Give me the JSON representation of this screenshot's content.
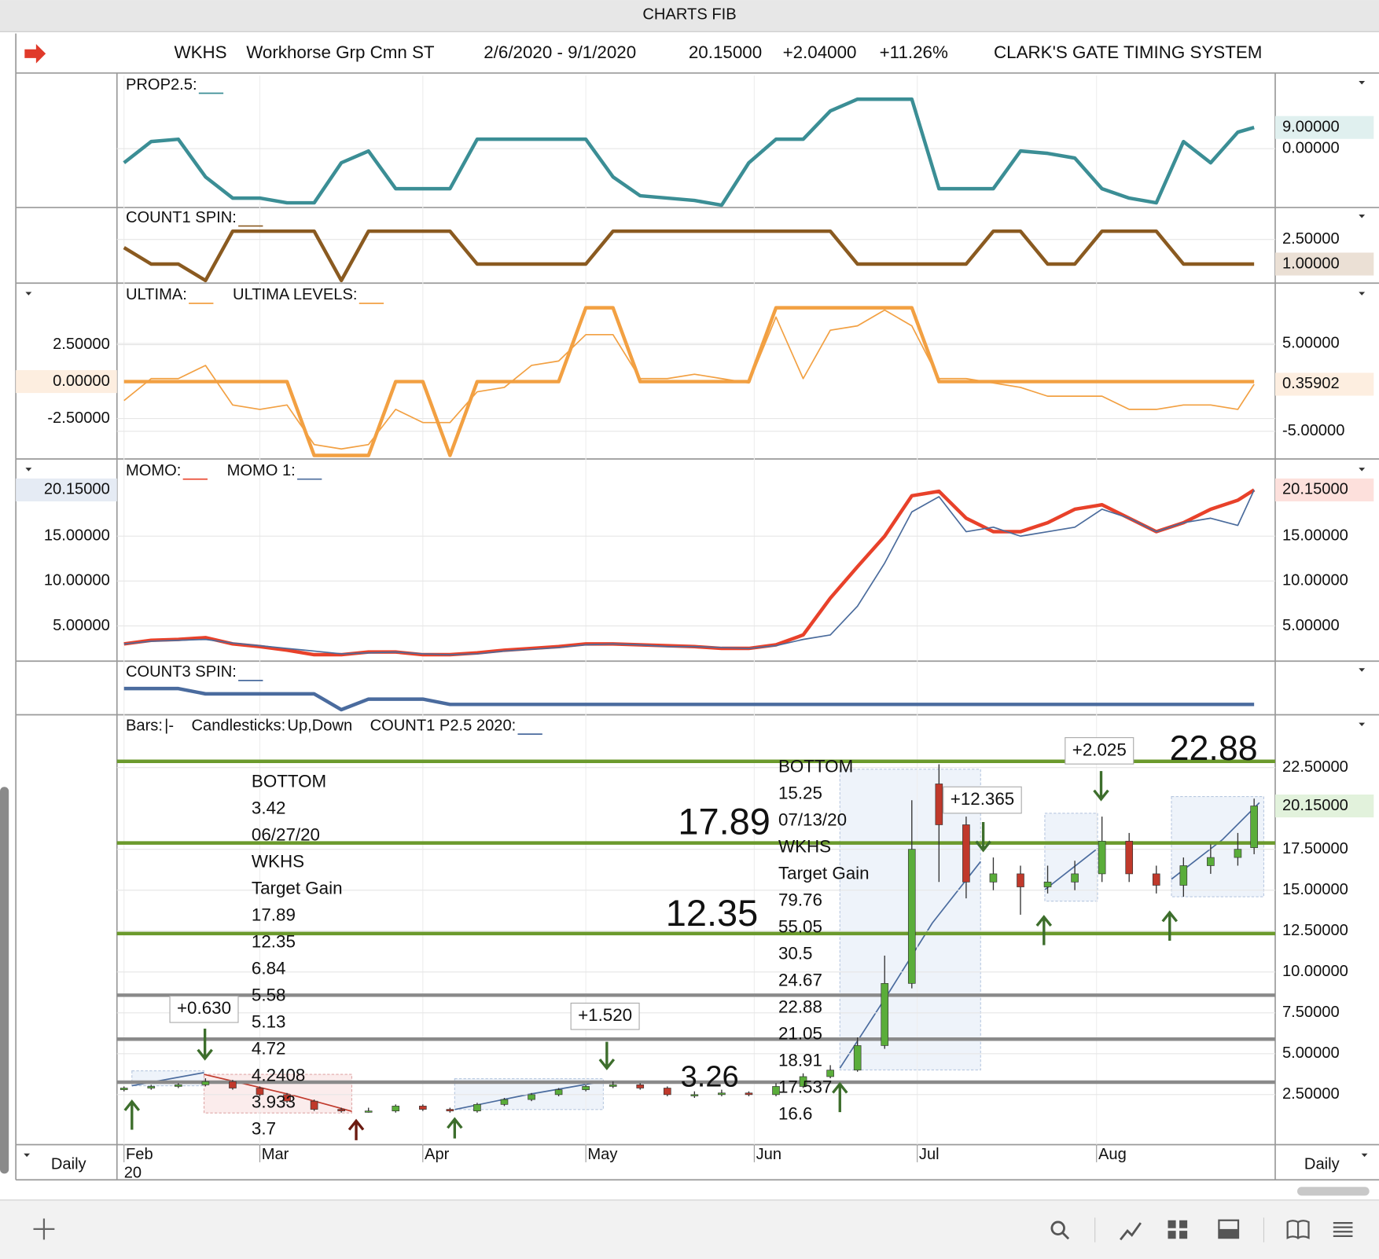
{
  "window": {
    "title": "CHARTS FIB"
  },
  "header": {
    "symbol": "WKHS",
    "name": "Workhorse Grp Cmn ST",
    "range": "2/6/2020 - 9/1/2020",
    "last": "20.15000",
    "change": "+2.04000",
    "change_pct": "+11.26%",
    "system": "CLARK'S GATE TIMING SYSTEM"
  },
  "x_axis": {
    "xlim": [
      37,
      245
    ],
    "x": [
      37,
      42,
      47,
      52,
      57,
      62,
      67,
      72,
      77,
      82,
      87,
      92,
      97,
      102,
      107,
      112,
      117,
      122,
      127,
      132,
      137,
      142,
      147,
      152,
      157,
      162,
      167,
      172,
      177,
      182,
      187,
      192,
      197,
      202,
      207,
      212,
      217,
      222,
      227,
      232,
      237,
      242,
      245
    ],
    "xticks": [
      {
        "value": 37,
        "label": "Feb"
      },
      {
        "value": 62,
        "label": "Mar"
      },
      {
        "value": 92,
        "label": "Apr"
      },
      {
        "value": 122,
        "label": "May"
      },
      {
        "value": 153,
        "label": "Jun"
      },
      {
        "value": 183,
        "label": "Jul"
      },
      {
        "value": 216,
        "label": "Aug"
      }
    ],
    "year_label": "20"
  },
  "chart_data": [
    {
      "type": "line",
      "ylim": [
        -25,
        31
      ],
      "tick_side": "right",
      "yticks": [
        {
          "value": 0,
          "label": "0.00000"
        }
      ],
      "series": [
        {
          "name": "PROP2.5:",
          "color": "#3b8e95",
          "weight": "bold",
          "label_side": "right",
          "label_color": "#e0f0ef",
          "last_label": "9.00000",
          "values": [
            -6,
            3,
            4,
            -12,
            -21,
            -21,
            -23,
            -23,
            -6,
            -1,
            -17,
            -17,
            -17,
            4,
            4,
            4,
            4,
            4,
            -12,
            -20,
            -21,
            -22,
            -24,
            -6,
            4,
            4,
            16,
            21,
            21,
            21,
            -17,
            -17,
            -17,
            -1,
            -2,
            -4,
            -17,
            -21,
            -23,
            3,
            -6,
            7,
            9
          ]
        }
      ]
    },
    {
      "type": "line",
      "ylim": [
        -0.16,
        4.44
      ],
      "tick_side": "right",
      "yticks": [
        {
          "value": 2.5,
          "label": "2.50000"
        }
      ],
      "series": [
        {
          "name": "COUNT1 SPIN:",
          "color": "#8a5a20",
          "weight": "bold",
          "label_side": "right",
          "label_color": "#ebe0d5",
          "last_label": "1.00000",
          "values": [
            2,
            1,
            1,
            0,
            3,
            3,
            3,
            3,
            0,
            3,
            3,
            3,
            3,
            1,
            1,
            1,
            1,
            1,
            3,
            3,
            3,
            3,
            3,
            3,
            3,
            3,
            3,
            1,
            1,
            1,
            1,
            1,
            3,
            3,
            1,
            1,
            3,
            3,
            3,
            1,
            1,
            1,
            1
          ]
        }
      ]
    },
    {
      "type": "line",
      "ylim": [
        -5.24,
        6.67
      ],
      "tick_side": "left",
      "yticks": [
        {
          "value": -2.5,
          "label": "-2.50000"
        },
        {
          "value": 2.5,
          "label": "2.50000"
        }
      ],
      "y2lim": [
        -8.14,
        11.86
      ],
      "y2ticks": [
        {
          "value": -5,
          "label": "-5.00000"
        },
        {
          "value": 5,
          "label": "5.00000"
        }
      ],
      "series": [
        {
          "name": "ULTIMA:",
          "color": "#f2a042",
          "weight": "thin",
          "axis": "y2",
          "label_side": "right",
          "label_color": "#fdeee0",
          "last_label": "0.35902",
          "values": [
            -1.5,
            1,
            1,
            2.5,
            -2,
            -2.5,
            -2,
            -6.5,
            -7,
            -6.5,
            -2.5,
            -4,
            -4,
            -0.5,
            0,
            2.5,
            3,
            6,
            6,
            1,
            1,
            1.5,
            1,
            0.5,
            8,
            1,
            6.5,
            7,
            8.8,
            7,
            1,
            1,
            0.5,
            0,
            -1,
            -1,
            -1,
            -2.5,
            -2.5,
            -2,
            -2,
            -2.5,
            0.35902
          ]
        },
        {
          "name": "ULTIMA LEVELS:",
          "color": "#f2a042",
          "weight": "bold",
          "label_side": "left",
          "label_color": "#fdeee0",
          "last_label": "0.00000",
          "values": [
            0,
            0,
            0,
            0,
            0,
            0,
            0,
            -5,
            -5,
            -5,
            0,
            0,
            -5,
            0,
            0,
            0,
            0,
            5,
            5,
            0,
            0,
            0,
            0,
            0,
            5,
            5,
            5,
            5,
            5,
            5,
            0,
            0,
            0,
            0,
            0,
            0,
            0,
            0,
            0,
            0,
            0,
            0,
            0
          ]
        }
      ]
    },
    {
      "type": "line",
      "ylim": [
        1.08,
        23.6
      ],
      "tick_side": "both",
      "yticks": [
        {
          "value": 5,
          "label": "5.00000"
        },
        {
          "value": 10,
          "label": "10.00000"
        },
        {
          "value": 15,
          "label": "15.00000"
        }
      ],
      "series": [
        {
          "name": "MOMO:",
          "color": "#e8412a",
          "weight": "bold",
          "label_side": "right",
          "label_color": "#fde0dc",
          "last_label": "20.15000",
          "values": [
            3,
            3.4,
            3.5,
            3.7,
            3,
            2.7,
            2.3,
            1.8,
            1.8,
            2.1,
            2.1,
            1.8,
            1.8,
            2,
            2.3,
            2.5,
            2.7,
            3,
            3,
            2.9,
            2.8,
            2.7,
            2.5,
            2.5,
            2.9,
            4,
            8.1,
            11.6,
            15,
            19.5,
            20,
            17,
            15.5,
            15.5,
            16.5,
            18,
            18.5,
            17,
            15.5,
            16.5,
            18,
            19,
            20.15
          ]
        },
        {
          "name": "MOMO 1:",
          "color": "#4a6b9c",
          "weight": "thin",
          "label_side": "left",
          "label_color": "#e5ebf4",
          "last_label": "20.15000",
          "values": [
            3,
            3.3,
            3.4,
            3.5,
            3.1,
            2.8,
            2.5,
            2.2,
            1.9,
            2,
            2.1,
            1.9,
            1.8,
            1.9,
            2.2,
            2.4,
            2.6,
            2.9,
            3,
            2.9,
            2.7,
            2.7,
            2.6,
            2.5,
            2.8,
            3.5,
            4,
            7.2,
            12,
            17.7,
            19.4,
            15.5,
            16,
            15,
            15.5,
            16,
            18,
            17,
            15.5,
            16.5,
            17,
            16.2,
            20.15
          ]
        }
      ]
    },
    {
      "type": "line",
      "ylim": [
        -0.8,
        9.2
      ],
      "tick_side": "none",
      "yticks": [],
      "series": [
        {
          "name": "COUNT3 SPIN:",
          "color": "#4a6b9e",
          "weight": "bold",
          "values": [
            4,
            4,
            4,
            3,
            3,
            3,
            3,
            3,
            0,
            2,
            2,
            2,
            1,
            1,
            1,
            1,
            1,
            1,
            1,
            1,
            1,
            1,
            1,
            1,
            1,
            1,
            1,
            1,
            1,
            1,
            1,
            1,
            1,
            1,
            1,
            1,
            1,
            1,
            1,
            1,
            1,
            1,
            1
          ]
        }
      ]
    },
    {
      "type": "candlestick",
      "ylim": [
        -0.56,
        25.78
      ],
      "tick_side": "right",
      "yticks": [
        {
          "value": 2.5,
          "label": "2.50000"
        },
        {
          "value": 5,
          "label": "5.00000"
        },
        {
          "value": 7.5,
          "label": "7.50000"
        },
        {
          "value": 10,
          "label": "10.00000"
        },
        {
          "value": 12.5,
          "label": "12.50000"
        },
        {
          "value": 15,
          "label": "15.00000"
        },
        {
          "value": 17.5,
          "label": "17.50000"
        },
        {
          "value": 22.5,
          "label": "22.50000"
        }
      ],
      "legend": {
        "bars": "Bars:",
        "bars_symbol": "|-",
        "candles": "Candlesticks:",
        "up": "Up",
        "separator": ",",
        "down": "Down",
        "overlay": "COUNT1 P2.5 2020:"
      },
      "up_color": "#5aad3a",
      "down_color": "#c0392b",
      "overlay_color": "#4a6b9e",
      "label_color": "#e2f2dc",
      "last_label": "20.15000",
      "open": [
        2.8,
        2.9,
        3.0,
        3.1,
        3.3,
        2.9,
        2.5,
        2.1,
        1.6,
        1.5,
        1.5,
        1.8,
        1.6,
        1.5,
        1.9,
        2.2,
        2.5,
        2.8,
        3.0,
        3.1,
        2.9,
        2.5,
        2.5,
        2.6,
        2.5,
        3.0,
        3.6,
        4.0,
        5.5,
        9.3,
        21.5,
        19.0,
        15.5,
        16.0,
        15.2,
        15.5,
        16.0,
        18.0,
        16.0,
        15.3,
        16.5,
        17.0,
        17.6
      ],
      "high": [
        3.0,
        3.1,
        3.2,
        3.5,
        3.4,
        3.0,
        2.6,
        2.2,
        1.7,
        1.7,
        1.9,
        1.9,
        1.7,
        2.0,
        2.3,
        2.6,
        2.9,
        3.1,
        3.3,
        3.2,
        3.0,
        2.7,
        2.8,
        2.7,
        3.2,
        3.8,
        4.3,
        6.0,
        11.0,
        20.5,
        22.7,
        19.5,
        17.0,
        16.5,
        16.5,
        16.8,
        19.5,
        18.5,
        16.5,
        17.0,
        17.8,
        18.5,
        20.6
      ],
      "low": [
        2.7,
        2.8,
        2.9,
        3.0,
        2.8,
        2.4,
        2.0,
        1.5,
        1.4,
        1.4,
        1.4,
        1.5,
        1.4,
        1.4,
        1.8,
        2.1,
        2.4,
        2.7,
        2.9,
        2.8,
        2.4,
        2.3,
        2.4,
        2.4,
        2.4,
        2.9,
        3.5,
        3.9,
        5.3,
        9.0,
        15.5,
        14.5,
        15.0,
        13.5,
        14.8,
        15.0,
        15.5,
        15.5,
        14.8,
        14.6,
        16.0,
        16.5,
        17.2
      ],
      "close": [
        2.9,
        3.0,
        3.1,
        3.3,
        2.9,
        2.5,
        2.1,
        1.6,
        1.5,
        1.5,
        1.8,
        1.6,
        1.5,
        1.9,
        2.2,
        2.5,
        2.8,
        3.0,
        3.1,
        2.9,
        2.5,
        2.5,
        2.6,
        2.5,
        3.0,
        3.6,
        4.0,
        5.5,
        9.3,
        17.5,
        19.0,
        15.5,
        16.0,
        15.2,
        15.5,
        16.0,
        18.0,
        16.0,
        15.3,
        16.5,
        17.0,
        17.5,
        20.15
      ],
      "levels": [
        {
          "value": 22.88,
          "color": "#6b9a2c",
          "label": "22.88",
          "label_color": "#5f9a2a"
        },
        {
          "value": 17.89,
          "color": "#6b9a2c",
          "label": "17.89",
          "label_color": "#5f9a2a"
        },
        {
          "value": 12.35,
          "color": "#6b9a2c",
          "label": "12.35",
          "label_color": "#5f9a2a"
        },
        {
          "value": 8.58,
          "color": "#8a8a8a"
        },
        {
          "value": 5.89,
          "color": "#8a8a8a"
        },
        {
          "value": 3.26,
          "color": "#8a8a8a",
          "label": "3.26",
          "label_color": "#111111"
        }
      ],
      "notes": [
        {
          "color": "#5f9a2a",
          "lines": [
            "BOTTOM",
            "3.42",
            "06/27/20",
            "WKHS",
            "Target Gain",
            "17.89",
            "12.35",
            "6.84",
            "5.58",
            "5.13",
            "4.72",
            "4.2408",
            "3.933",
            "3.7"
          ]
        },
        {
          "color": "#5f9a2a",
          "lines": [
            "BOTTOM",
            "15.25",
            "07/13/20",
            "WKHS",
            "Target Gain",
            "79.76",
            "55.05",
            "30.5",
            "24.67",
            "22.88",
            "21.05",
            "18.91",
            "17.537",
            "16.6"
          ]
        }
      ],
      "gains": [
        "+0.630",
        "+1.520",
        "+12.365",
        "+2.025"
      ]
    }
  ],
  "footer": {
    "left": "Daily",
    "right": "Daily"
  }
}
